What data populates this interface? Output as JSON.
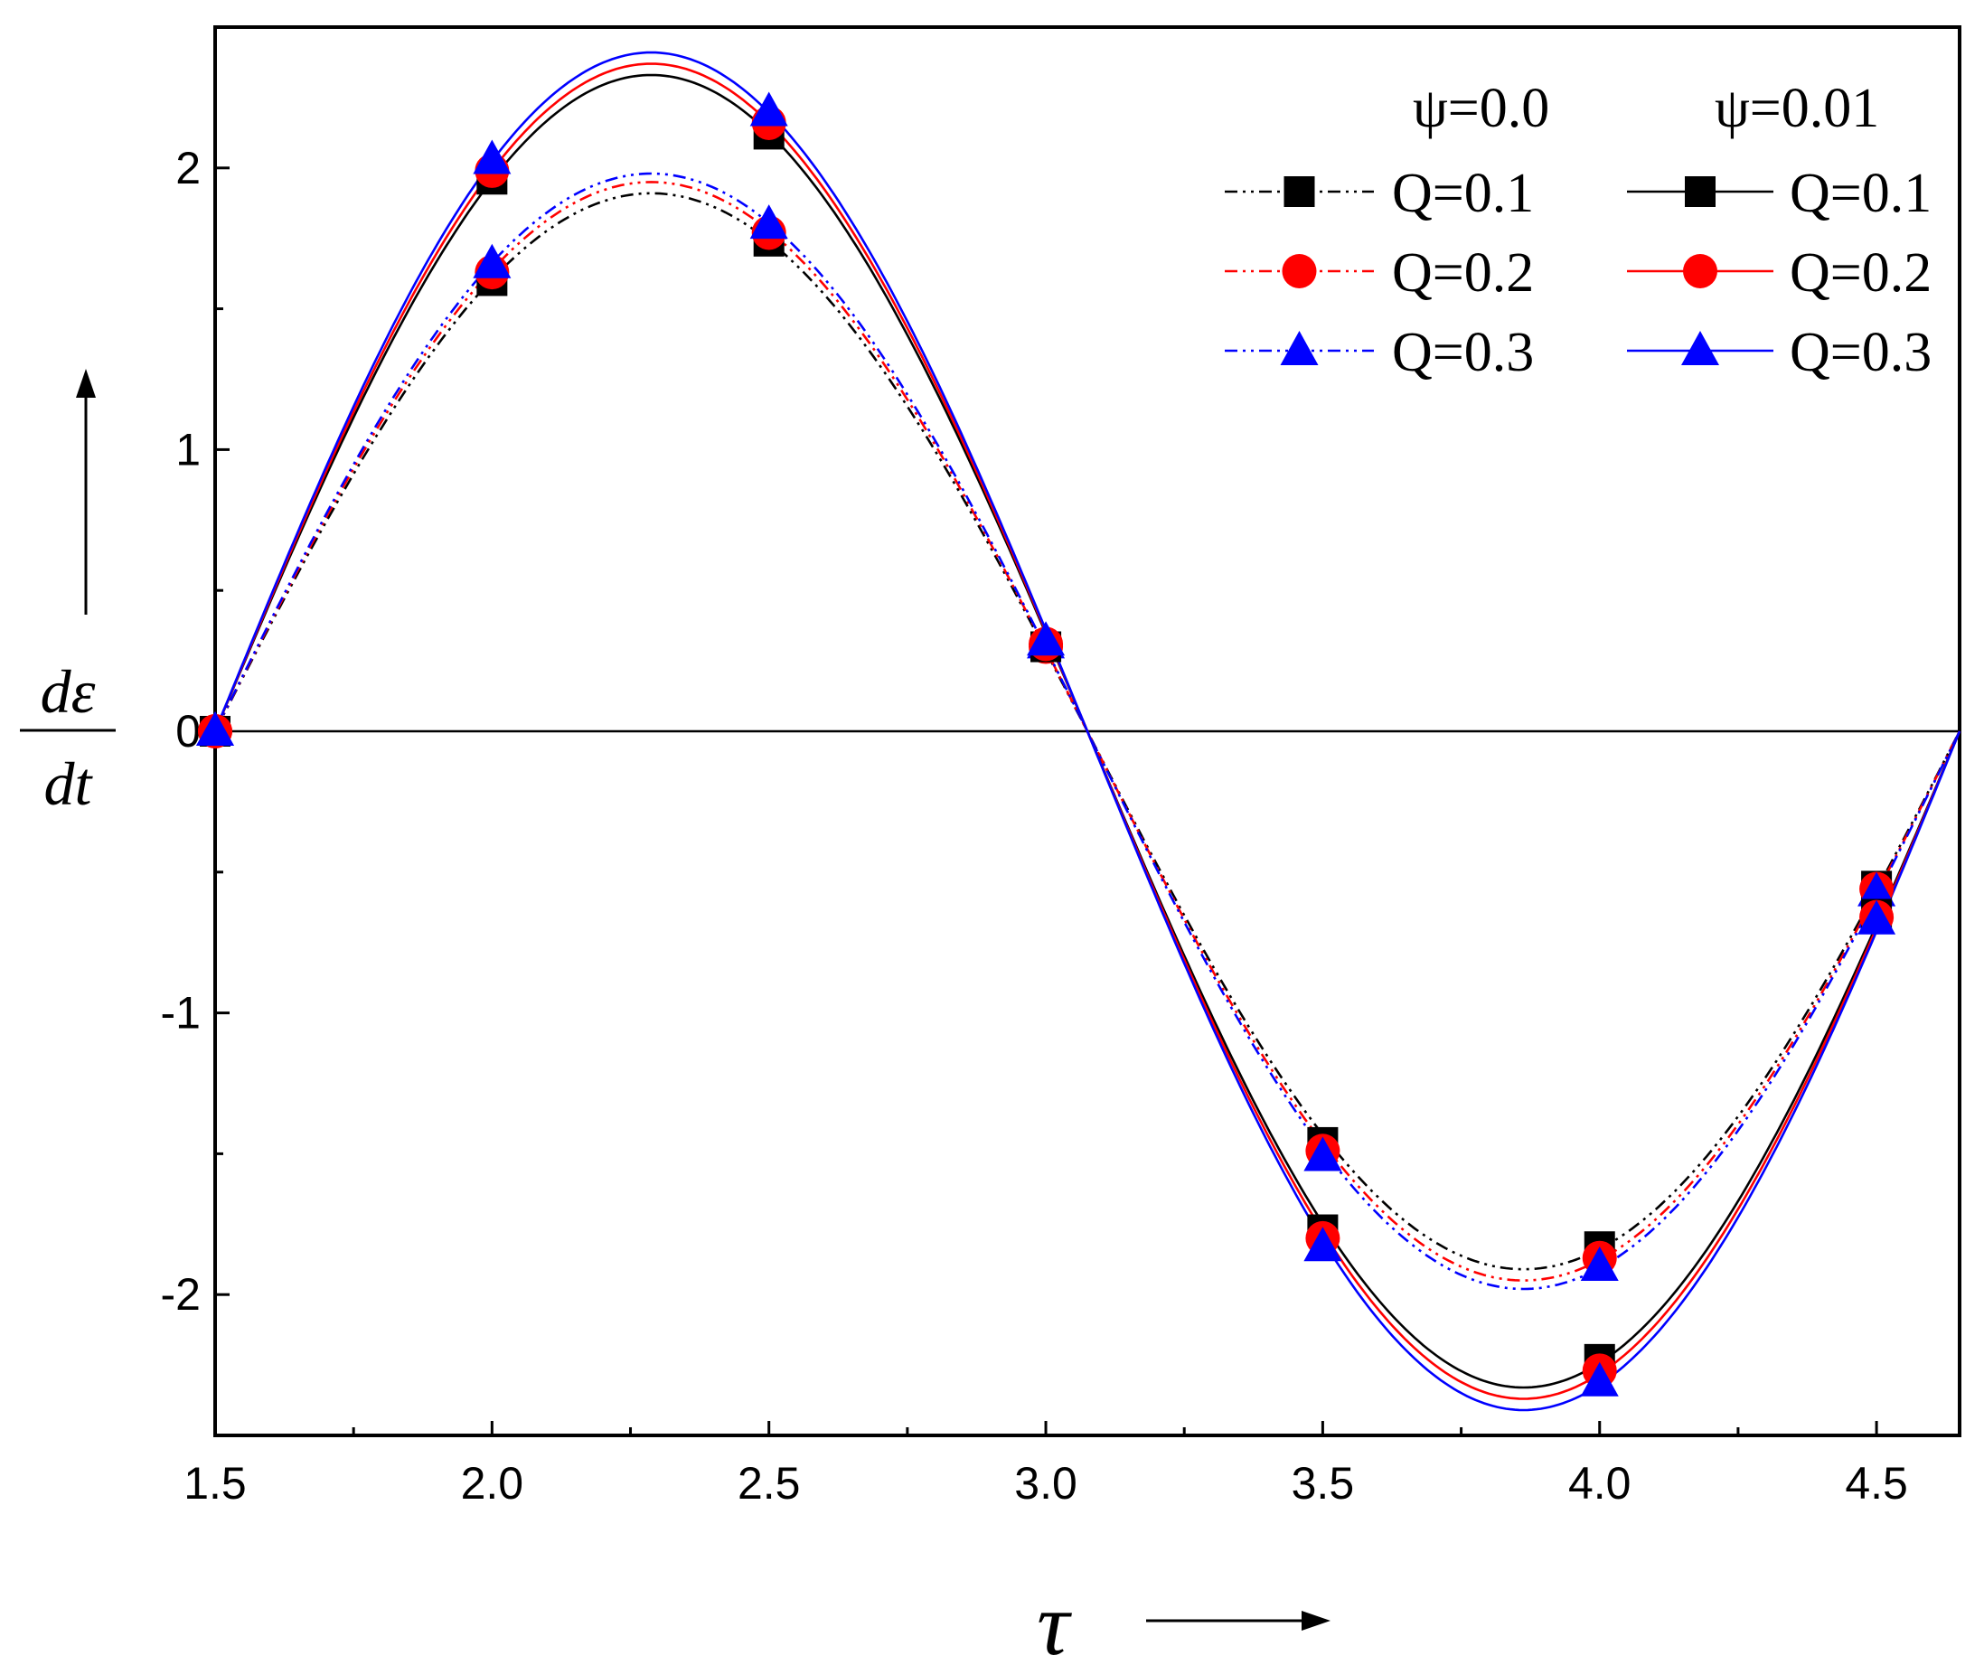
{
  "chart_data": {
    "type": "line",
    "title": "",
    "xlabel": "τ",
    "ylabel_numerator": "dε",
    "ylabel_denominator": "dt",
    "xlim": [
      1.5,
      4.65
    ],
    "ylim": [
      -2.5,
      2.5
    ],
    "x_ticks": [
      1.5,
      2.0,
      2.5,
      3.0,
      3.5,
      4.0,
      4.5
    ],
    "x_tick_labels": [
      "1.5",
      "2.0",
      "2.5",
      "3.0",
      "3.5",
      "4.0",
      "4.5"
    ],
    "y_ticks": [
      -2,
      -1,
      0,
      1,
      2
    ],
    "y_tick_labels": [
      "-2",
      "-1",
      "0",
      "1",
      "2"
    ],
    "legend_position": "top-right",
    "legend_headers": [
      "ψ=0.0",
      "ψ=0.01"
    ],
    "zero_crossing": 3.075,
    "period": 3.15,
    "series": [
      {
        "name": "Q=0.1",
        "group": "ψ=0.0",
        "color": "#000000",
        "style": "dash-dot-dot",
        "marker": "square",
        "amplitude": 1.91,
        "x": [
          1.5,
          2.0,
          2.5,
          3.0,
          3.5,
          4.0,
          4.5
        ],
        "y": [
          0.0,
          1.6,
          1.74,
          0.3,
          -1.46,
          -1.83,
          -0.55
        ]
      },
      {
        "name": "Q=0.2",
        "group": "ψ=0.0",
        "color": "#ff0000",
        "style": "dash-dot-dot",
        "marker": "circle",
        "amplitude": 1.95,
        "x": [
          1.5,
          2.0,
          2.5,
          3.0,
          3.5,
          4.0,
          4.5
        ],
        "y": [
          0.0,
          1.63,
          1.77,
          0.3,
          -1.49,
          -1.87,
          -0.56
        ]
      },
      {
        "name": "Q=0.3",
        "group": "ψ=0.0",
        "color": "#0000ff",
        "style": "dash-dot-dot",
        "marker": "triangle",
        "amplitude": 1.98,
        "x": [
          1.5,
          2.0,
          2.5,
          3.0,
          3.5,
          4.0,
          4.5
        ],
        "y": [
          0.0,
          1.66,
          1.8,
          0.31,
          -1.51,
          -1.9,
          -0.57
        ]
      },
      {
        "name": "Q=0.1",
        "group": "ψ=0.01",
        "color": "#000000",
        "style": "solid",
        "marker": "square",
        "amplitude": 2.33,
        "x": [
          1.5,
          2.0,
          2.5,
          3.0,
          3.5,
          4.0,
          4.5
        ],
        "y": [
          0.0,
          1.96,
          2.12,
          0.3,
          -1.77,
          -2.23,
          -0.65
        ]
      },
      {
        "name": "Q=0.2",
        "group": "ψ=0.01",
        "color": "#ff0000",
        "style": "solid",
        "marker": "circle",
        "amplitude": 2.37,
        "x": [
          1.5,
          2.0,
          2.5,
          3.0,
          3.5,
          4.0,
          4.5
        ],
        "y": [
          0.0,
          1.99,
          2.16,
          0.31,
          -1.8,
          -2.27,
          -0.66
        ]
      },
      {
        "name": "Q=0.3",
        "group": "ψ=0.01",
        "color": "#0000ff",
        "style": "solid",
        "marker": "triangle",
        "amplitude": 2.41,
        "x": [
          1.5,
          2.0,
          2.5,
          3.0,
          3.5,
          4.0,
          4.5
        ],
        "y": [
          0.0,
          2.03,
          2.2,
          0.32,
          -1.83,
          -2.31,
          -0.67
        ]
      }
    ]
  }
}
